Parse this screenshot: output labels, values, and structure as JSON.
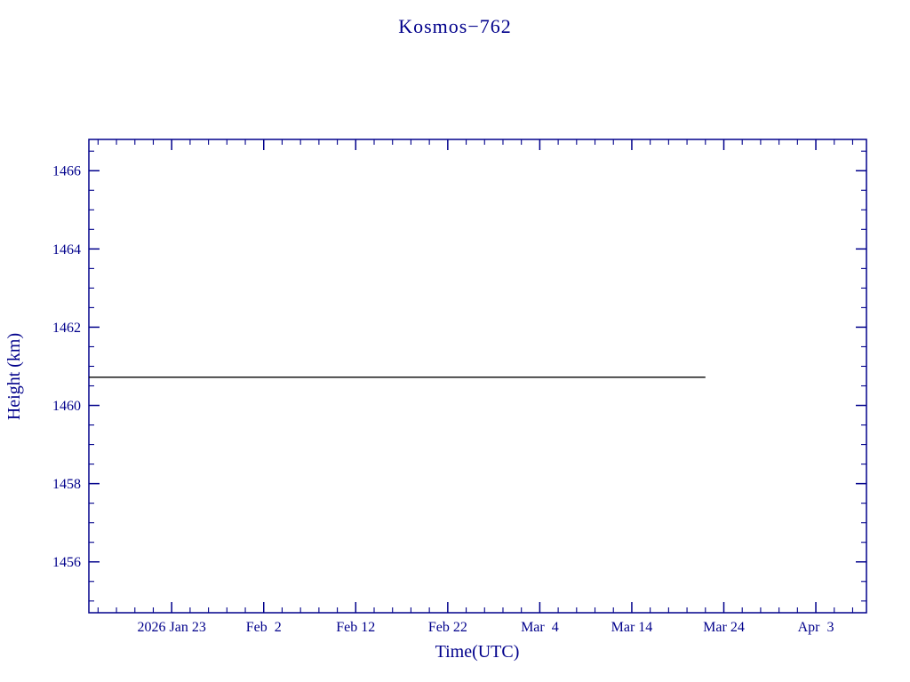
{
  "chart_data": {
    "type": "line",
    "title": "Kosmos−762",
    "xlabel": "Time(UTC)",
    "ylabel": "Height (km)",
    "frame_color": "#00008b",
    "grid": false,
    "legend": "none",
    "x_unit": "days relative to first labeled tick (2026 Jan 23 = 0)",
    "xlim": [
      -9,
      75.5
    ],
    "ylim": [
      1454.7,
      1466.8
    ],
    "x_ticks": [
      {
        "value": 0,
        "label": "2026 Jan 23"
      },
      {
        "value": 10,
        "label": "Feb  2"
      },
      {
        "value": 20,
        "label": "Feb 12"
      },
      {
        "value": 30,
        "label": "Feb 22"
      },
      {
        "value": 40,
        "label": "Mar  4"
      },
      {
        "value": 50,
        "label": "Mar 14"
      },
      {
        "value": 60,
        "label": "Mar 24"
      },
      {
        "value": 70,
        "label": "Apr  3"
      }
    ],
    "x_minor_step": 2,
    "y_ticks": [
      1456,
      1458,
      1460,
      1462,
      1464,
      1466
    ],
    "y_minor_step": 0.5,
    "series": [
      {
        "name": "height",
        "color": "#000000",
        "points": [
          [
            -9,
            1460.72
          ],
          [
            58,
            1460.72
          ]
        ]
      }
    ]
  }
}
